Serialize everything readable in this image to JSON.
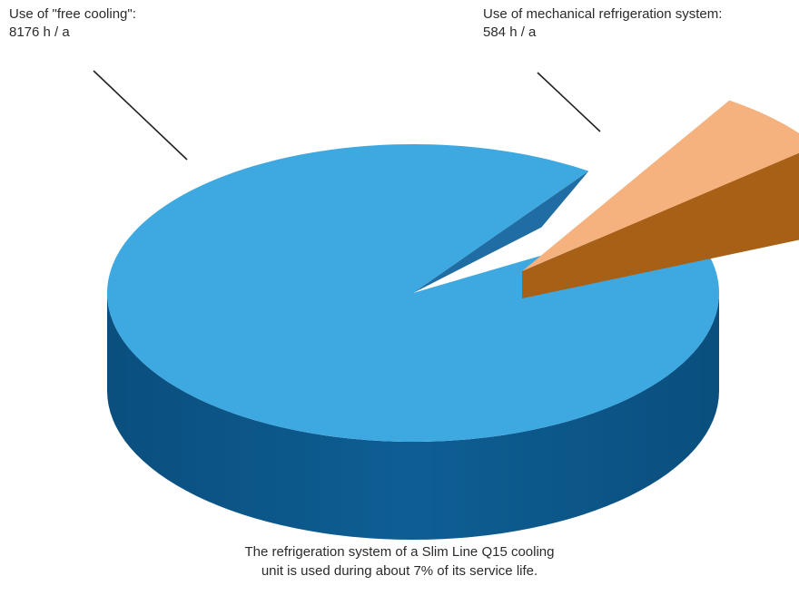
{
  "chart_data": {
    "type": "pie",
    "style": "3d-exploded",
    "categories": [
      "Use of \"free cooling\"",
      "Use of mechanical refrigeration system"
    ],
    "values": [
      8176,
      584
    ],
    "unit": "h / a",
    "annotations": [
      {
        "line1": "Use of \"free cooling\":",
        "line2": "8176 h / a"
      },
      {
        "line1": "Use of mechanical refrigeration system:",
        "line2": "584 h / a"
      }
    ],
    "colors": {
      "free_top": "#3ea8e0",
      "free_side": "#0d5a8e",
      "mech_top": "#f5b27e",
      "mech_side": "#a85f16"
    }
  },
  "caption": {
    "line1": "The refrigeration system of a Slim Line Q15 cooling",
    "line2": "unit is used during about 7% of its service life."
  }
}
